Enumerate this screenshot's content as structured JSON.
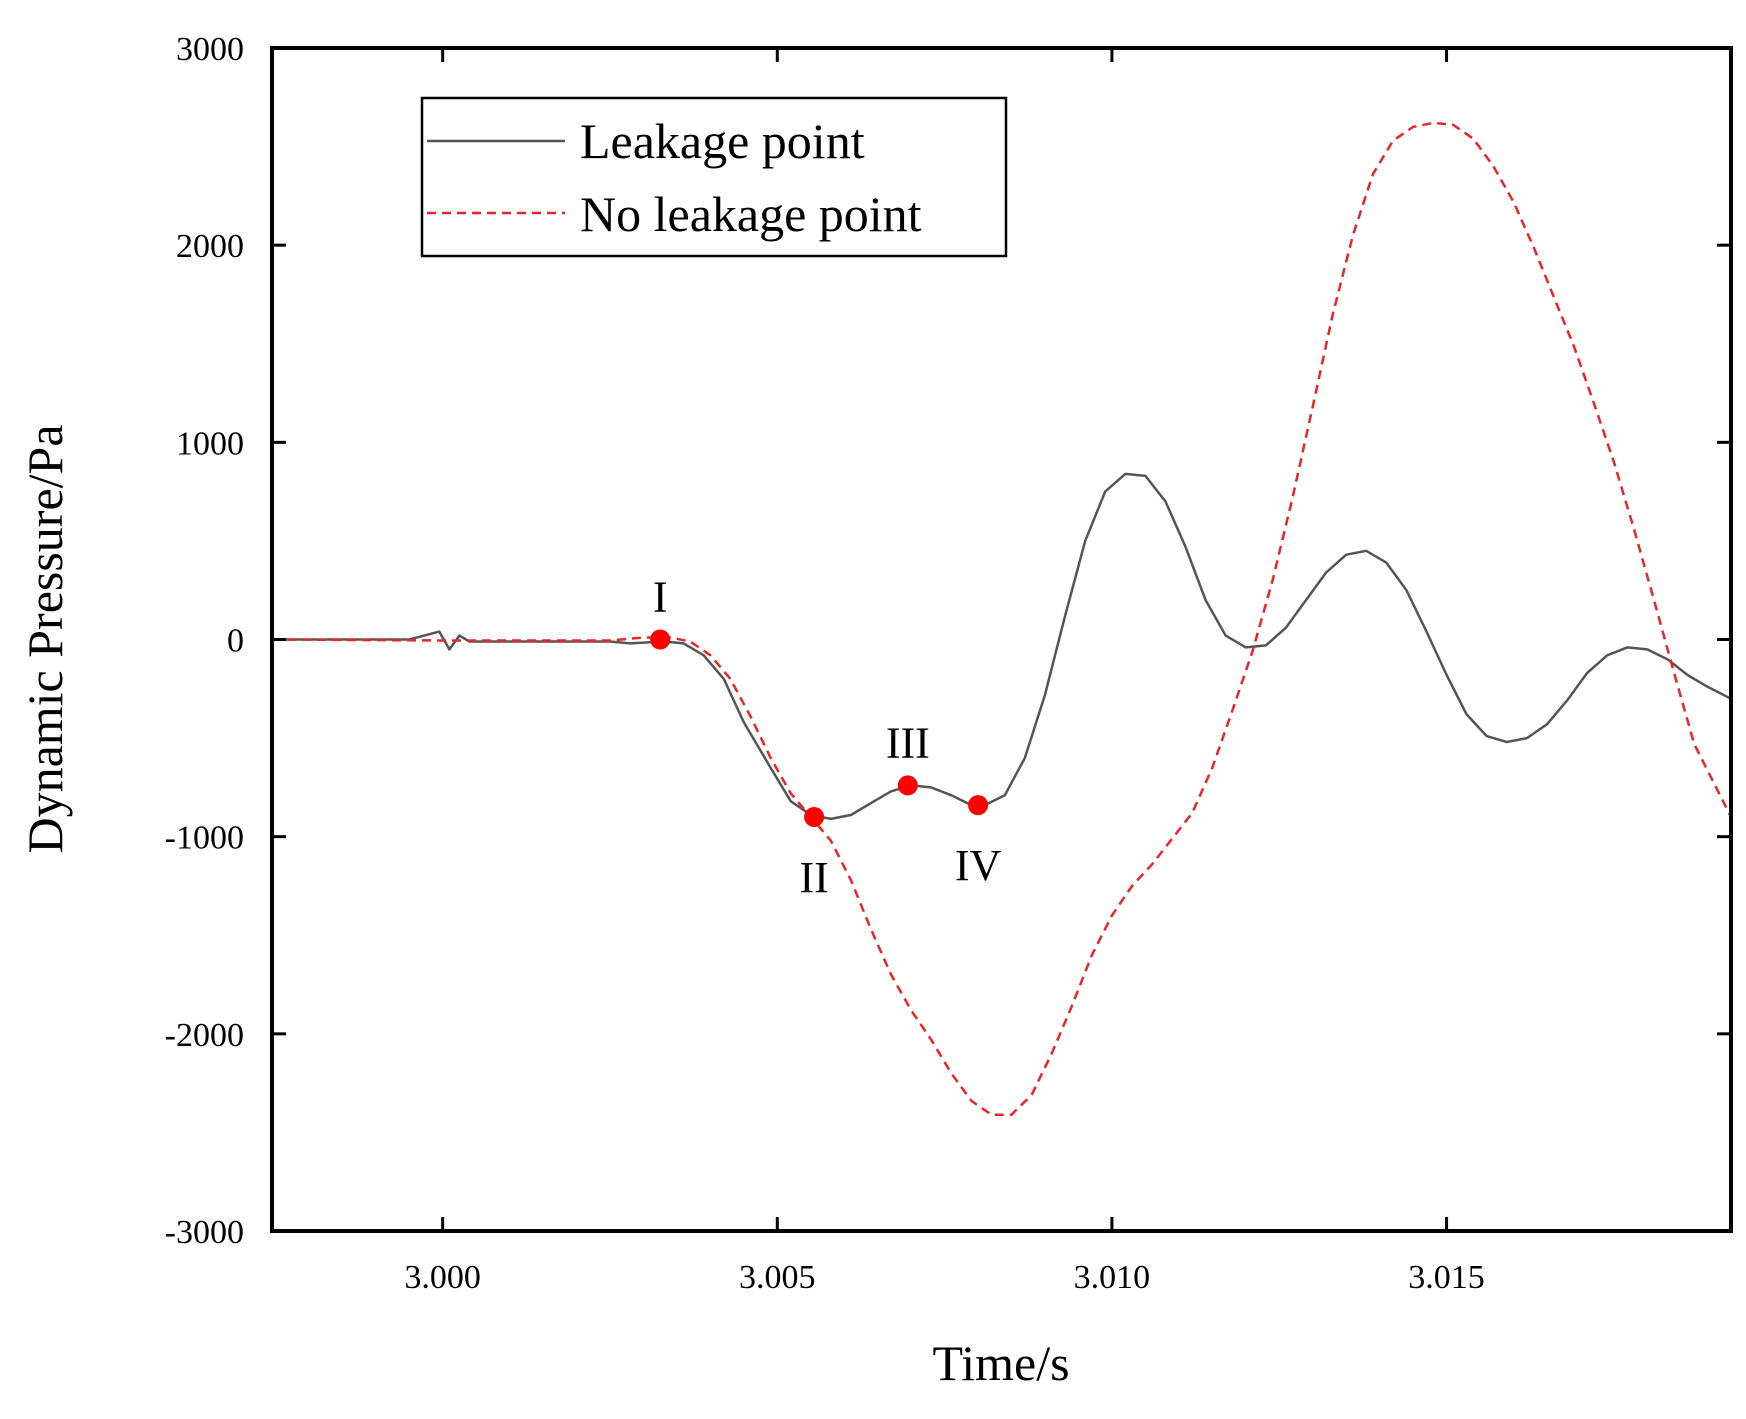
{
  "chart_data": {
    "type": "line",
    "xlabel": "Time/s",
    "ylabel": "Dynamic Pressure/Pa",
    "xlim": [
      2.99745,
      3.01925
    ],
    "ylim": [
      -3000,
      3000
    ],
    "x_ticks": [
      "3.000",
      "3.005",
      "3.010",
      "3.015"
    ],
    "x_tick_values": [
      3.0,
      3.005,
      3.01,
      3.015
    ],
    "y_ticks": [
      "3000",
      "2000",
      "1000",
      "0",
      "-1000",
      "-2000",
      "-3000"
    ],
    "y_tick_values": [
      3000,
      2000,
      1000,
      0,
      -1000,
      -2000,
      -3000
    ],
    "grid": false,
    "legend_position": "top-left",
    "series": [
      {
        "name": "Leakage point",
        "color": "#555555",
        "dash": "solid",
        "points": [
          [
            2.99745,
            0
          ],
          [
            2.9995,
            0
          ],
          [
            2.99995,
            40
          ],
          [
            3.0001,
            -50
          ],
          [
            3.00025,
            20
          ],
          [
            3.0004,
            -10
          ],
          [
            3.001,
            -10
          ],
          [
            3.002,
            -10
          ],
          [
            3.0025,
            -10
          ],
          [
            3.0028,
            -20
          ],
          [
            3.0033,
            -10
          ],
          [
            3.0036,
            -20
          ],
          [
            3.0039,
            -80
          ],
          [
            3.0042,
            -200
          ],
          [
            3.0045,
            -420
          ],
          [
            3.0049,
            -650
          ],
          [
            3.0052,
            -820
          ],
          [
            3.0055,
            -890
          ],
          [
            3.0058,
            -910
          ],
          [
            3.0061,
            -890
          ],
          [
            3.0064,
            -830
          ],
          [
            3.0067,
            -770
          ],
          [
            3.007,
            -740
          ],
          [
            3.0073,
            -750
          ],
          [
            3.0076,
            -790
          ],
          [
            3.0079,
            -840
          ],
          [
            3.0081,
            -840
          ],
          [
            3.0084,
            -790
          ],
          [
            3.0087,
            -600
          ],
          [
            3.009,
            -280
          ],
          [
            3.0093,
            120
          ],
          [
            3.0096,
            500
          ],
          [
            3.0099,
            750
          ],
          [
            3.0102,
            840
          ],
          [
            3.0105,
            830
          ],
          [
            3.0108,
            700
          ],
          [
            3.0111,
            470
          ],
          [
            3.0114,
            200
          ],
          [
            3.0117,
            20
          ],
          [
            3.012,
            -40
          ],
          [
            3.0123,
            -30
          ],
          [
            3.0126,
            60
          ],
          [
            3.0129,
            200
          ],
          [
            3.0132,
            340
          ],
          [
            3.0135,
            430
          ],
          [
            3.0138,
            450
          ],
          [
            3.0141,
            390
          ],
          [
            3.0144,
            250
          ],
          [
            3.0147,
            40
          ],
          [
            3.015,
            -180
          ],
          [
            3.0153,
            -380
          ],
          [
            3.0156,
            -490
          ],
          [
            3.0159,
            -520
          ],
          [
            3.0162,
            -500
          ],
          [
            3.0165,
            -430
          ],
          [
            3.0168,
            -310
          ],
          [
            3.0171,
            -170
          ],
          [
            3.0174,
            -80
          ],
          [
            3.0177,
            -40
          ],
          [
            3.018,
            -50
          ],
          [
            3.0183,
            -100
          ],
          [
            3.0186,
            -180
          ],
          [
            3.0189,
            -240
          ],
          [
            3.01925,
            -300
          ]
        ]
      },
      {
        "name": "No leakage point",
        "color": "#e8252b",
        "dash": "dashed",
        "points": [
          [
            2.99745,
            0
          ],
          [
            3.0,
            -5
          ],
          [
            3.002,
            -5
          ],
          [
            3.0025,
            -5
          ],
          [
            3.003,
            10
          ],
          [
            3.0034,
            10
          ],
          [
            3.0037,
            -10
          ],
          [
            3.004,
            -80
          ],
          [
            3.0043,
            -200
          ],
          [
            3.0046,
            -390
          ],
          [
            3.0049,
            -600
          ],
          [
            3.0052,
            -780
          ],
          [
            3.0055,
            -900
          ],
          [
            3.0058,
            -1020
          ],
          [
            3.0061,
            -1220
          ],
          [
            3.0064,
            -1470
          ],
          [
            3.0067,
            -1700
          ],
          [
            3.007,
            -1880
          ],
          [
            3.0073,
            -2030
          ],
          [
            3.0076,
            -2200
          ],
          [
            3.0079,
            -2340
          ],
          [
            3.0082,
            -2410
          ],
          [
            3.0085,
            -2410
          ],
          [
            3.0088,
            -2310
          ],
          [
            3.0091,
            -2100
          ],
          [
            3.0094,
            -1860
          ],
          [
            3.0097,
            -1600
          ],
          [
            3.01,
            -1400
          ],
          [
            3.0103,
            -1250
          ],
          [
            3.0106,
            -1140
          ],
          [
            3.0109,
            -1010
          ],
          [
            3.0112,
            -880
          ],
          [
            3.0115,
            -650
          ],
          [
            3.0118,
            -360
          ],
          [
            3.0121,
            -60
          ],
          [
            3.0124,
            300
          ],
          [
            3.0127,
            720
          ],
          [
            3.013,
            1180
          ],
          [
            3.0133,
            1650
          ],
          [
            3.0136,
            2050
          ],
          [
            3.0139,
            2360
          ],
          [
            3.0142,
            2530
          ],
          [
            3.0145,
            2600
          ],
          [
            3.0148,
            2620
          ],
          [
            3.0151,
            2610
          ],
          [
            3.0154,
            2540
          ],
          [
            3.0157,
            2400
          ],
          [
            3.016,
            2220
          ],
          [
            3.0163,
            1990
          ],
          [
            3.0166,
            1740
          ],
          [
            3.0169,
            1490
          ],
          [
            3.0172,
            1200
          ],
          [
            3.0175,
            900
          ],
          [
            3.0178,
            560
          ],
          [
            3.0181,
            200
          ],
          [
            3.0184,
            -170
          ],
          [
            3.0187,
            -530
          ],
          [
            3.01925,
            -900
          ]
        ]
      }
    ],
    "markers": {
      "color": "#ff0000",
      "points": [
        {
          "label": "I",
          "x": 3.00325,
          "y": 0,
          "label_pos": "above"
        },
        {
          "label": "II",
          "x": 3.00555,
          "y": -900,
          "label_pos": "below"
        },
        {
          "label": "III",
          "x": 3.00695,
          "y": -740,
          "label_pos": "above"
        },
        {
          "label": "IV",
          "x": 3.008,
          "y": -840,
          "label_pos": "below"
        }
      ]
    }
  }
}
